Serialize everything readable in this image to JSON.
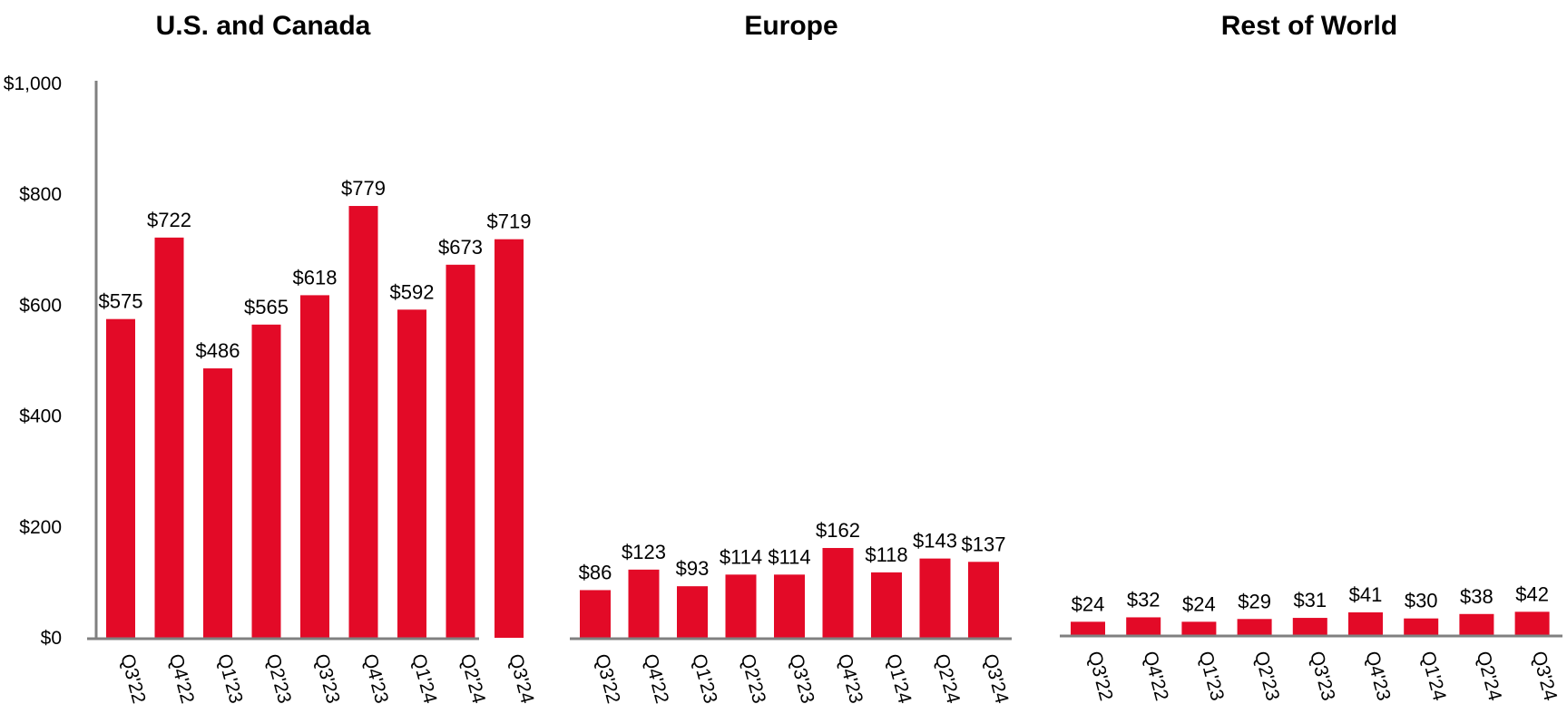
{
  "colors": {
    "bar": "#e30a27",
    "axis": "#808080"
  },
  "y_axis": {
    "ticks": [
      0,
      200,
      400,
      600,
      800,
      1000
    ],
    "tick_labels": [
      "$0",
      "$200",
      "$400",
      "$600",
      "$800",
      "$1,000"
    ]
  },
  "chart_data": [
    {
      "type": "bar",
      "title": "U.S. and Canada",
      "categories": [
        "Q3'22",
        "Q4'22",
        "Q1'23",
        "Q2'23",
        "Q3'23",
        "Q4'23",
        "Q1'24",
        "Q2'24",
        "Q3'24"
      ],
      "values": [
        575,
        722,
        486,
        565,
        618,
        779,
        592,
        673,
        719
      ],
      "data_labels": [
        "$575",
        "$722",
        "$486",
        "$565",
        "$618",
        "$779",
        "$592",
        "$673",
        "$719"
      ],
      "ylim": [
        0,
        1000
      ],
      "grid": false,
      "legend": "none"
    },
    {
      "type": "bar",
      "title": "Europe",
      "categories": [
        "Q3'22",
        "Q4'22",
        "Q1'23",
        "Q2'23",
        "Q3'23",
        "Q4'23",
        "Q1'24",
        "Q2'24",
        "Q3'24"
      ],
      "values": [
        86,
        123,
        93,
        114,
        114,
        162,
        118,
        143,
        137
      ],
      "data_labels": [
        "$86",
        "$123",
        "$93",
        "$114",
        "$114",
        "$162",
        "$118",
        "$143",
        "$137"
      ],
      "ylim": [
        0,
        1000
      ],
      "grid": false,
      "legend": "none"
    },
    {
      "type": "bar",
      "title": "Rest of World",
      "categories": [
        "Q3'22",
        "Q4'22",
        "Q1'23",
        "Q2'23",
        "Q3'23",
        "Q4'23",
        "Q1'24",
        "Q2'24",
        "Q3'24"
      ],
      "values": [
        24,
        32,
        24,
        29,
        31,
        41,
        30,
        38,
        42
      ],
      "data_labels": [
        "$24",
        "$32",
        "$24",
        "$29",
        "$31",
        "$41",
        "$30",
        "$38",
        "$42"
      ],
      "ylim": [
        0,
        1000
      ],
      "grid": false,
      "legend": "none"
    }
  ]
}
